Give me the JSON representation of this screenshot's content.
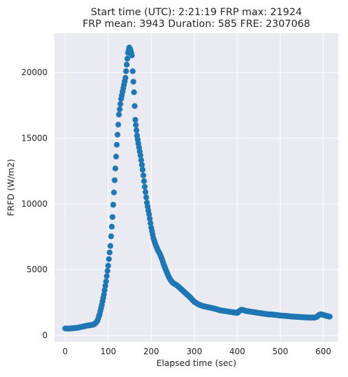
{
  "chart_data": {
    "type": "scatter",
    "title_lines": [
      "Start time (UTC): 2:21:19 FRP max: 21924",
      "FRP mean: 3943 Duration: 585 FRE: 2307068"
    ],
    "xlabel": "Elapsed time (sec)",
    "ylabel": "FRFD (W/m2)",
    "xlim": [
      -25,
      635
    ],
    "ylim": [
      -500,
      23000
    ],
    "xticks": [
      0,
      100,
      200,
      300,
      400,
      500,
      600
    ],
    "yticks": [
      0,
      5000,
      10000,
      15000,
      20000
    ],
    "grid": true,
    "background": "#eaeaf2",
    "marker_color": "#1f77b4",
    "legend": "none",
    "anchor_points": [
      [
        0,
        520
      ],
      [
        10,
        510
      ],
      [
        20,
        540
      ],
      [
        30,
        580
      ],
      [
        40,
        650
      ],
      [
        50,
        730
      ],
      [
        60,
        780
      ],
      [
        65,
        800
      ],
      [
        70,
        900
      ],
      [
        75,
        1100
      ],
      [
        80,
        1600
      ],
      [
        85,
        2300
      ],
      [
        90,
        3100
      ],
      [
        95,
        4100
      ],
      [
        100,
        5300
      ],
      [
        105,
        6800
      ],
      [
        110,
        9000
      ],
      [
        115,
        11800
      ],
      [
        120,
        14500
      ],
      [
        125,
        16800
      ],
      [
        130,
        18000
      ],
      [
        135,
        18800
      ],
      [
        140,
        19600
      ],
      [
        143,
        20600
      ],
      [
        146,
        21500
      ],
      [
        149,
        21900
      ],
      [
        152,
        21700
      ],
      [
        155,
        21300
      ],
      [
        157,
        20100
      ],
      [
        160,
        18500
      ],
      [
        163,
        16400
      ],
      [
        167,
        15200
      ],
      [
        170,
        14600
      ],
      [
        175,
        13700
      ],
      [
        180,
        12600
      ],
      [
        185,
        11300
      ],
      [
        190,
        10100
      ],
      [
        195,
        9200
      ],
      [
        200,
        8200
      ],
      [
        205,
        7400
      ],
      [
        210,
        6900
      ],
      [
        215,
        6500
      ],
      [
        220,
        6200
      ],
      [
        225,
        5800
      ],
      [
        230,
        5300
      ],
      [
        235,
        4900
      ],
      [
        240,
        4500
      ],
      [
        245,
        4200
      ],
      [
        250,
        4000
      ],
      [
        260,
        3800
      ],
      [
        270,
        3500
      ],
      [
        280,
        3200
      ],
      [
        290,
        2900
      ],
      [
        300,
        2550
      ],
      [
        310,
        2350
      ],
      [
        320,
        2220
      ],
      [
        330,
        2150
      ],
      [
        340,
        2080
      ],
      [
        350,
        2000
      ],
      [
        360,
        1900
      ],
      [
        370,
        1850
      ],
      [
        380,
        1800
      ],
      [
        390,
        1750
      ],
      [
        400,
        1700
      ],
      [
        405,
        1850
      ],
      [
        410,
        1950
      ],
      [
        415,
        1900
      ],
      [
        420,
        1850
      ],
      [
        430,
        1800
      ],
      [
        440,
        1750
      ],
      [
        450,
        1700
      ],
      [
        460,
        1650
      ],
      [
        470,
        1600
      ],
      [
        480,
        1580
      ],
      [
        490,
        1550
      ],
      [
        500,
        1500
      ],
      [
        510,
        1480
      ],
      [
        520,
        1450
      ],
      [
        530,
        1420
      ],
      [
        540,
        1400
      ],
      [
        550,
        1380
      ],
      [
        560,
        1360
      ],
      [
        570,
        1350
      ],
      [
        580,
        1340
      ],
      [
        585,
        1400
      ],
      [
        590,
        1550
      ],
      [
        595,
        1600
      ],
      [
        600,
        1550
      ],
      [
        605,
        1500
      ],
      [
        610,
        1450
      ],
      [
        615,
        1420
      ]
    ]
  }
}
